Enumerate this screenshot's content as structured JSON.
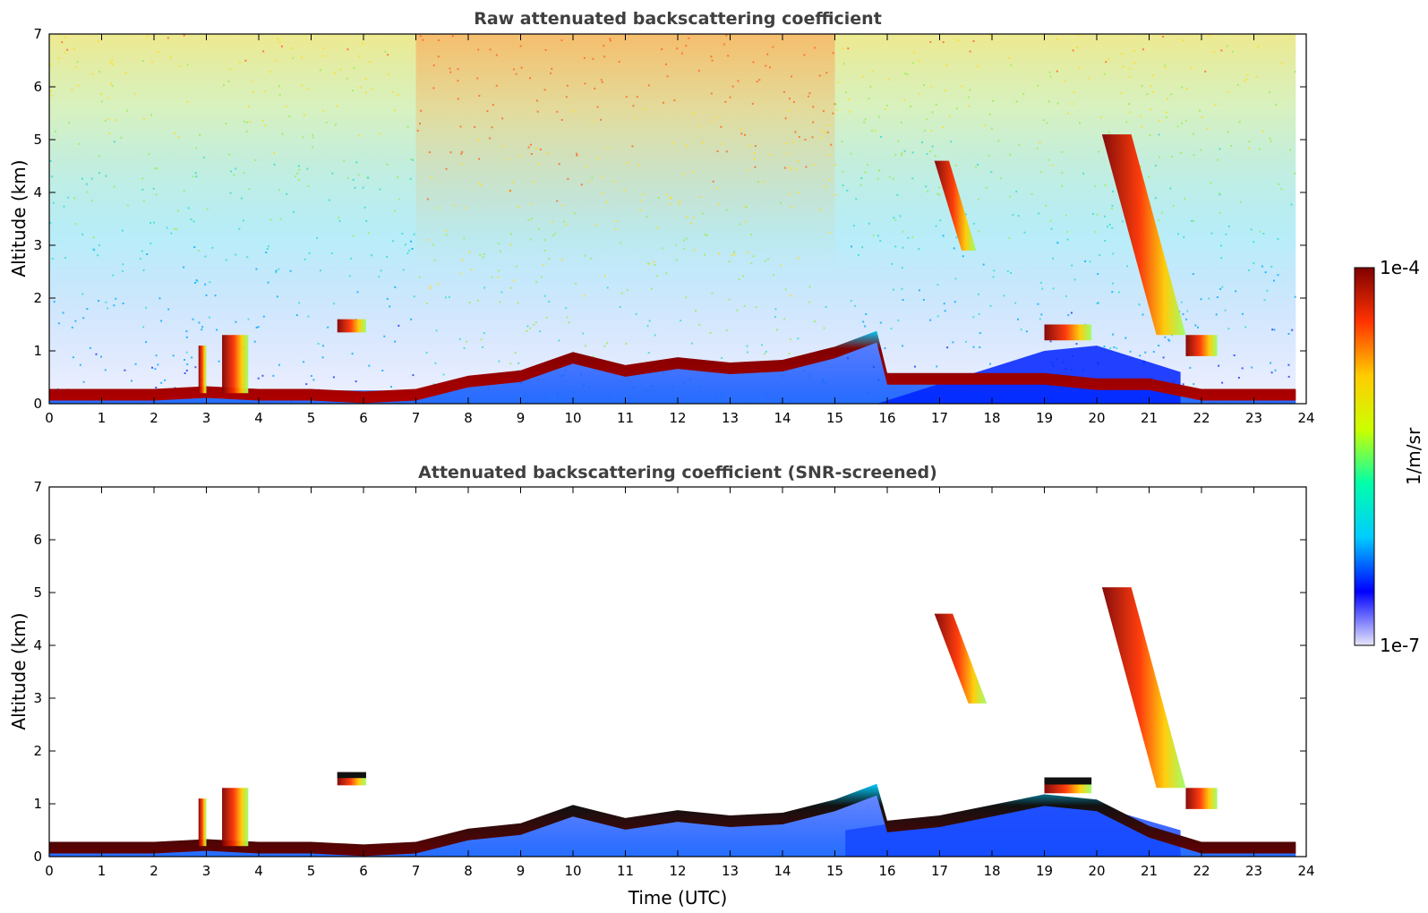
{
  "chart_data": [
    {
      "type": "heatmap",
      "title": "Raw attenuated backscattering coefficient",
      "xlabel": "",
      "ylabel": "Altitude (km)",
      "xlim": [
        0,
        24
      ],
      "ylim": [
        0,
        7
      ],
      "xticks": [
        "0",
        "1",
        "2",
        "3",
        "4",
        "5",
        "6",
        "7",
        "8",
        "9",
        "10",
        "11",
        "12",
        "13",
        "14",
        "15",
        "16",
        "17",
        "18",
        "19",
        "20",
        "21",
        "22",
        "23",
        "24"
      ],
      "yticks": [
        "0",
        "1",
        "2",
        "3",
        "4",
        "5",
        "6",
        "7"
      ],
      "screened": false,
      "features": [
        {
          "kind": "boundary-layer",
          "time": [
            0,
            1,
            2,
            3,
            4,
            5,
            6,
            7,
            8,
            9,
            10,
            11,
            12,
            13,
            14,
            15,
            15.8,
            16,
            17,
            18,
            19,
            20,
            21,
            22,
            23,
            23.8
          ],
          "top_km": [
            0.2,
            0.2,
            0.2,
            0.25,
            0.2,
            0.2,
            0.15,
            0.2,
            0.45,
            0.55,
            0.9,
            0.65,
            0.8,
            0.7,
            0.75,
            1.0,
            1.3,
            0.5,
            0.5,
            0.5,
            0.5,
            0.4,
            0.4,
            0.2,
            0.2,
            0.2
          ]
        },
        {
          "kind": "cloud",
          "time": [
            2.85,
            3.0
          ],
          "alt_km": [
            0.2,
            1.1
          ]
        },
        {
          "kind": "cloud",
          "time": [
            3.3,
            3.8
          ],
          "alt_km": [
            0.2,
            1.3
          ]
        },
        {
          "kind": "cloud",
          "time": [
            5.5,
            6.05
          ],
          "alt_km": [
            1.35,
            1.6
          ]
        },
        {
          "kind": "cloud",
          "time": [
            16.9,
            17.7
          ],
          "alt_km": [
            2.9,
            4.6
          ]
        },
        {
          "kind": "cloud",
          "time": [
            19.0,
            19.9
          ],
          "alt_km": [
            1.2,
            1.5
          ]
        },
        {
          "kind": "cloud",
          "time": [
            20.1,
            21.7
          ],
          "alt_km": [
            1.3,
            5.1
          ]
        },
        {
          "kind": "cloud",
          "time": [
            21.7,
            22.3
          ],
          "alt_km": [
            0.9,
            1.3
          ]
        }
      ]
    },
    {
      "type": "heatmap",
      "title": "Attenuated backscattering coefficient (SNR-screened)",
      "xlabel": "Time (UTC)",
      "ylabel": "Altitude (km)",
      "xlim": [
        0,
        24
      ],
      "ylim": [
        0,
        7
      ],
      "xticks": [
        "0",
        "1",
        "2",
        "3",
        "4",
        "5",
        "6",
        "7",
        "8",
        "9",
        "10",
        "11",
        "12",
        "13",
        "14",
        "15",
        "16",
        "17",
        "18",
        "19",
        "20",
        "21",
        "22",
        "23",
        "24"
      ],
      "yticks": [
        "0",
        "1",
        "2",
        "3",
        "4",
        "5",
        "6",
        "7"
      ],
      "screened": true,
      "features": [
        {
          "kind": "boundary-layer",
          "time": [
            0,
            1,
            2,
            3,
            4,
            5,
            6,
            7,
            8,
            9,
            10,
            11,
            12,
            13,
            14,
            15,
            15.8,
            16,
            17,
            18,
            19,
            20,
            21,
            22,
            23,
            23.8
          ],
          "top_km": [
            0.2,
            0.2,
            0.2,
            0.25,
            0.2,
            0.2,
            0.15,
            0.2,
            0.45,
            0.55,
            0.9,
            0.65,
            0.8,
            0.7,
            0.75,
            1.0,
            1.3,
            0.6,
            0.7,
            0.9,
            1.1,
            1.0,
            0.5,
            0.2,
            0.2,
            0.2
          ]
        },
        {
          "kind": "cloud",
          "time": [
            2.85,
            3.0
          ],
          "alt_km": [
            0.2,
            1.1
          ]
        },
        {
          "kind": "cloud",
          "time": [
            3.3,
            3.8
          ],
          "alt_km": [
            0.2,
            1.3
          ]
        },
        {
          "kind": "cloud",
          "time": [
            5.5,
            6.05
          ],
          "alt_km": [
            1.35,
            1.6
          ]
        },
        {
          "kind": "cloud",
          "time": [
            16.9,
            17.9
          ],
          "alt_km": [
            2.9,
            4.6
          ]
        },
        {
          "kind": "cloud",
          "time": [
            19.0,
            19.9
          ],
          "alt_km": [
            1.2,
            1.5
          ]
        },
        {
          "kind": "cloud",
          "time": [
            20.1,
            21.7
          ],
          "alt_km": [
            1.3,
            5.1
          ]
        },
        {
          "kind": "cloud",
          "time": [
            21.7,
            22.3
          ],
          "alt_km": [
            0.9,
            1.3
          ]
        }
      ]
    }
  ],
  "colorbar": {
    "max_label": "1e-4",
    "min_label": "1e-7",
    "unit_label": "1/m/sr",
    "colormap": "jet",
    "colors": [
      "#e6e6fa",
      "#0000ff",
      "#00ccff",
      "#00ffaa",
      "#ccff00",
      "#ffcc00",
      "#ff3300",
      "#800000"
    ]
  }
}
